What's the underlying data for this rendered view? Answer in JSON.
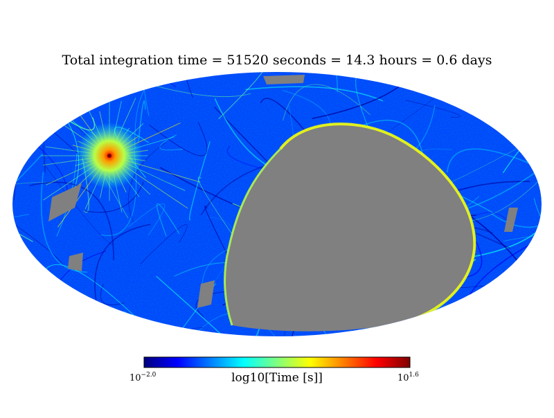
{
  "chart_data": {
    "type": "heatmap",
    "projection": "mollweide",
    "title": "Total integration time = 51520 seconds = 14.3 hours = 0.6 days",
    "colorbar": {
      "label": "log10[Time [s]]",
      "min_base": "10",
      "min_exp": "−2.0",
      "max_base": "10",
      "max_exp": "1.6",
      "min_log10": -2.0,
      "max_log10": 1.6,
      "colormap": "jet",
      "colors": [
        "#00007f",
        "#0000ff",
        "#007fff",
        "#00ffff",
        "#7fff7f",
        "#ffff00",
        "#ff7f00",
        "#ff0000",
        "#7f0000"
      ]
    },
    "background_log10": -1.3,
    "hotspot_log10": 1.6,
    "unobserved_color": "#808080"
  }
}
